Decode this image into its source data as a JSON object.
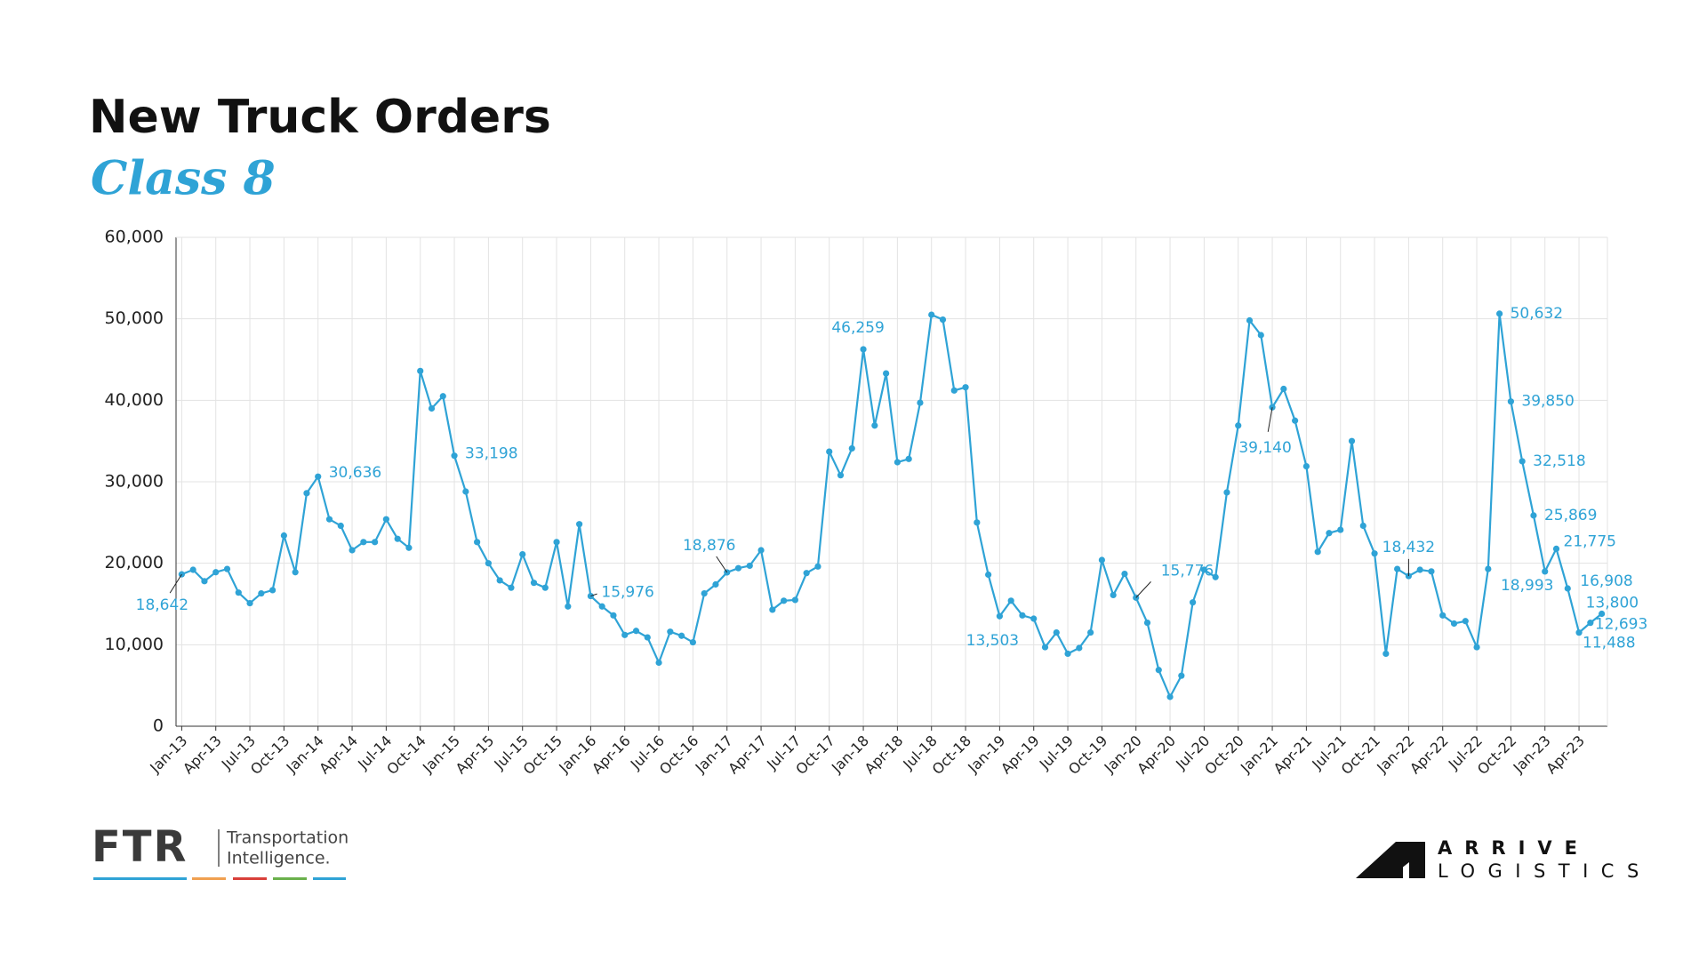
{
  "chart_data": {
    "type": "line",
    "title": "New Truck Orders",
    "subtitle": "Class 8",
    "categories": [
      "Jan-13",
      null,
      null,
      "Apr-13",
      null,
      null,
      "Jul-13",
      null,
      null,
      "Oct-13",
      null,
      null,
      "Jan-14",
      null,
      null,
      "Apr-14",
      null,
      null,
      "Jul-14",
      null,
      null,
      "Oct-14",
      null,
      null,
      "Jan-15",
      null,
      null,
      "Apr-15",
      null,
      null,
      "Jul-15",
      null,
      null,
      "Oct-15",
      null,
      null,
      "Jan-16",
      null,
      null,
      "Apr-16",
      null,
      null,
      "Jul-16",
      null,
      null,
      "Oct-16",
      null,
      null,
      "Jan-17",
      null,
      null,
      "Apr-17",
      null,
      null,
      "Jul-17",
      null,
      null,
      "Oct-17",
      null,
      null,
      "Jan-18",
      null,
      null,
      "Apr-18",
      null,
      null,
      "Jul-18",
      null,
      null,
      "Oct-18",
      null,
      null,
      "Jan-19",
      null,
      null,
      "Apr-19",
      null,
      null,
      "Jul-19",
      null,
      null,
      "Oct-19",
      null,
      null,
      "Jan-20",
      null,
      null,
      "Apr-20",
      null,
      null,
      "Jul-20",
      null,
      null,
      "Oct-20",
      null,
      null,
      "Jan-21",
      null,
      null,
      "Apr-21",
      null,
      null,
      "Jul-21",
      null,
      null,
      "Oct-21",
      null,
      null,
      "Jan-22",
      null,
      null,
      "Apr-22",
      null,
      null,
      "Jul-22",
      null,
      null,
      "Oct-22",
      null,
      null,
      "Jan-23",
      null,
      null,
      "Apr-23",
      null,
      null
    ],
    "series": [
      {
        "name": "Class 8",
        "color": "#2fa3d6",
        "values": [
          18642,
          19200,
          17800,
          18900,
          19300,
          16400,
          15100,
          16300,
          16700,
          23400,
          18900,
          28600,
          30636,
          25400,
          24600,
          21600,
          22600,
          22600,
          25400,
          23000,
          21900,
          43600,
          39000,
          40500,
          33198,
          28800,
          22600,
          20000,
          17900,
          17000,
          21100,
          17600,
          17000,
          22600,
          14700,
          24800,
          15976,
          14700,
          13600,
          11200,
          11700,
          10900,
          7800,
          11600,
          11100,
          10300,
          16300,
          17400,
          18876,
          19400,
          19700,
          21600,
          14300,
          15400,
          15500,
          18800,
          19600,
          33700,
          30800,
          34100,
          46259,
          36900,
          43300,
          32400,
          32800,
          39700,
          50500,
          49900,
          41200,
          41600,
          25000,
          18600,
          13503,
          15400,
          13600,
          13200,
          9700,
          11500,
          8900,
          9600,
          11500,
          20400,
          16100,
          18700,
          15776,
          12700,
          6900,
          3600,
          6200,
          15200,
          19200,
          18300,
          28700,
          36900,
          49800,
          48000,
          39140,
          41400,
          37500,
          31900,
          21400,
          23700,
          24100,
          35000,
          24600,
          21200,
          8900,
          19300,
          18432,
          19200,
          19000,
          13600,
          12600,
          12900,
          9700,
          19300,
          50632,
          39850,
          32518,
          25869,
          18993,
          21775,
          16908,
          11488,
          12693,
          13800
        ],
        "value_labels": [
          "18,642",
          null,
          null,
          null,
          null,
          null,
          null,
          null,
          null,
          null,
          null,
          null,
          "30,636",
          null,
          null,
          null,
          null,
          null,
          null,
          null,
          null,
          null,
          null,
          null,
          "33,198",
          null,
          null,
          null,
          null,
          null,
          null,
          null,
          null,
          null,
          null,
          null,
          "15,976",
          null,
          null,
          null,
          null,
          null,
          null,
          null,
          null,
          null,
          null,
          null,
          "18,876",
          null,
          null,
          null,
          null,
          null,
          null,
          null,
          null,
          null,
          null,
          null,
          "46,259",
          null,
          null,
          null,
          null,
          null,
          null,
          null,
          null,
          null,
          null,
          null,
          "13,503",
          null,
          null,
          null,
          null,
          null,
          null,
          null,
          null,
          null,
          null,
          null,
          "15,776",
          null,
          null,
          null,
          null,
          null,
          null,
          null,
          null,
          null,
          null,
          null,
          "39,140",
          null,
          null,
          null,
          null,
          null,
          null,
          null,
          null,
          null,
          null,
          null,
          "18,432",
          null,
          null,
          null,
          null,
          null,
          null,
          null,
          "50,632",
          "39,850",
          "32,518",
          "25,869",
          "18,993",
          "21,775",
          "16,908",
          "11,488",
          "12,693",
          "13,800"
        ]
      }
    ],
    "ylim": [
      0,
      60000
    ],
    "yticks": [
      0,
      {
        "value": 10000,
        "label": "10,000"
      },
      {
        "value": 20000,
        "label": "20,000"
      },
      {
        "value": 30000,
        "label": "30,000"
      },
      {
        "value": 40000,
        "label": "40,000"
      },
      {
        "value": 50000,
        "label": "50,000"
      },
      {
        "value": 60000,
        "label": "60,000"
      }
    ],
    "grid": true
  },
  "logos": {
    "ftr": {
      "mark": "FTR",
      "tagline_1": "Transportation",
      "tagline_2": "Intelligence."
    },
    "arrive": {
      "line_1": "ARRIVE",
      "line_2": "LOGISTICS"
    }
  }
}
